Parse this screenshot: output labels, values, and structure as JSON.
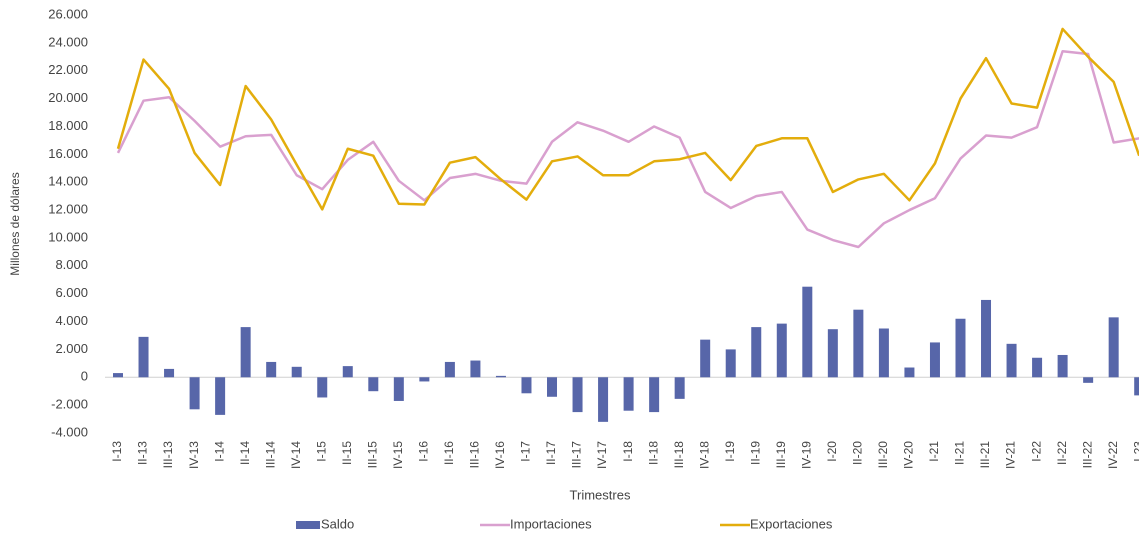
{
  "chart_data": {
    "type": "combo",
    "ylabel": "Millones de dólares",
    "xlabel": "Trimestres",
    "categories": [
      "I-13",
      "II-13",
      "III-13",
      "IV-13",
      "I-14",
      "II-14",
      "III-14",
      "IV-14",
      "I-15",
      "II-15",
      "III-15",
      "IV-15",
      "I-16",
      "II-16",
      "III-16",
      "IV-16",
      "I-17",
      "II-17",
      "III-17",
      "IV-17",
      "I-18",
      "II-18",
      "III-18",
      "IV-18",
      "I-19",
      "II-19",
      "III-19",
      "IV-19",
      "I-20",
      "II-20",
      "III-20",
      "IV-20",
      "I-21",
      "II-21",
      "III-21",
      "IV-21",
      "I-22",
      "II-22",
      "III-22",
      "IV-22",
      "I-23"
    ],
    "series": [
      {
        "name": "Saldo",
        "type": "bar",
        "color": "#5766a9",
        "values": [
          300,
          2900,
          600,
          -2300,
          -2700,
          3600,
          1100,
          750,
          -1450,
          800,
          -1000,
          -1700,
          -300,
          1100,
          1200,
          100,
          -1150,
          -1400,
          -2500,
          -3200,
          -2400,
          -2500,
          -1550,
          2700,
          2000,
          3600,
          3850,
          6500,
          3450,
          4850,
          3500,
          700,
          2500,
          4200,
          5550,
          2400,
          1400,
          1600,
          -400,
          4300,
          -1300
        ]
      },
      {
        "name": "Importaciones",
        "type": "line",
        "color": "#d9a0cf",
        "values": [
          16100,
          19850,
          20100,
          18400,
          16550,
          17300,
          17400,
          14500,
          13500,
          15600,
          16900,
          14100,
          12700,
          14300,
          14600,
          14100,
          13900,
          16900,
          18300,
          17700,
          16900,
          18000,
          17200,
          13300,
          12150,
          13000,
          13300,
          10600,
          9850,
          9350,
          11050,
          12000,
          12850,
          15700,
          17350,
          17200,
          17950,
          23400,
          23200,
          16850,
          17150
        ]
      },
      {
        "name": "Exportaciones",
        "type": "line",
        "color": "#e3ad0c",
        "values": [
          16400,
          22800,
          20700,
          16100,
          13800,
          20900,
          18500,
          15250,
          12050,
          16400,
          15900,
          12450,
          12400,
          15400,
          15800,
          14200,
          12750,
          15500,
          15850,
          14500,
          14500,
          15500,
          15650,
          16100,
          14150,
          16600,
          17150,
          17150,
          13300,
          14200,
          14600,
          12700,
          15350,
          20000,
          22900,
          19650,
          19350,
          25000,
          23000,
          21200,
          15900
        ]
      }
    ],
    "ylim": [
      -4000,
      26000
    ],
    "yticks": [
      {
        "value": -4000,
        "label": "-4.000"
      },
      {
        "value": -2000,
        "label": "-2.000"
      },
      0,
      {
        "value": 2000,
        "label": "2.000"
      },
      {
        "value": 4000,
        "label": "4.000"
      },
      {
        "value": 6000,
        "label": "6.000"
      },
      {
        "value": 8000,
        "label": "8.000"
      },
      {
        "value": 10000,
        "label": "10.000"
      },
      {
        "value": 12000,
        "label": "12.000"
      },
      {
        "value": 14000,
        "label": "14.000"
      },
      {
        "value": 16000,
        "label": "16.000"
      },
      {
        "value": 18000,
        "label": "18.000"
      },
      {
        "value": 20000,
        "label": "20.000"
      },
      {
        "value": 22000,
        "label": "22.000"
      },
      {
        "value": 24000,
        "label": "24.000"
      },
      {
        "value": 26000,
        "label": "26.000"
      }
    ],
    "grid": false,
    "legend": "bottom"
  }
}
